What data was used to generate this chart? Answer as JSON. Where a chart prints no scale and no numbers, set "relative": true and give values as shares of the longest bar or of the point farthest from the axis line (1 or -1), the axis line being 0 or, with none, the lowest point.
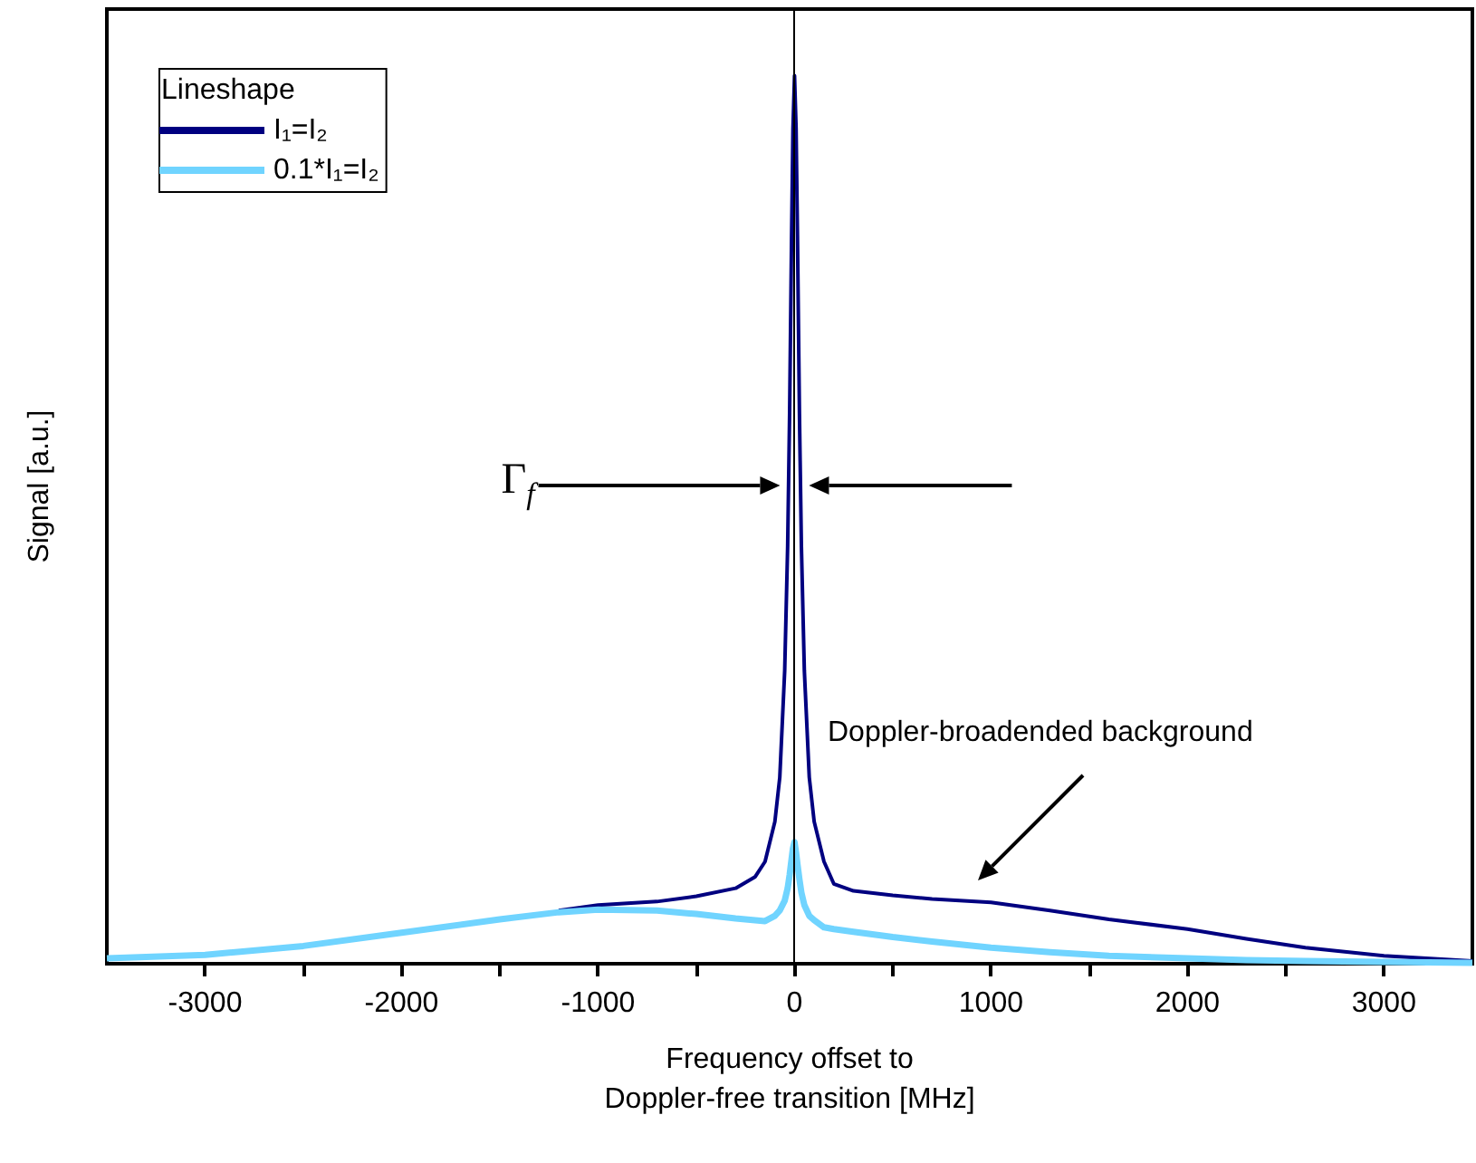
{
  "chart_data": {
    "type": "line",
    "relative": true,
    "xlabel": "Frequency offset to\nDoppler-free transition [MHz]",
    "ylabel": "Signal [a.u.]",
    "legend_title": "Lineshape",
    "legend": "top left",
    "grid": false,
    "marker": "none",
    "line_style": "solid",
    "x": [
      -3500,
      -3000,
      -2500,
      -2000,
      -1500,
      -1200,
      -1000,
      -700,
      -500,
      -300,
      -200,
      -150,
      -100,
      -75,
      -50,
      -35,
      -25,
      -15,
      -8,
      0,
      8,
      15,
      25,
      35,
      50,
      75,
      100,
      150,
      200,
      300,
      500,
      700,
      1000,
      1300,
      1600,
      2000,
      2300,
      2600,
      3000,
      3450
    ],
    "xlim": [
      -3500,
      3450
    ],
    "xticks": [
      -3000,
      {
        "value": -2500,
        "label": null
      },
      -2000,
      {
        "value": -1500,
        "label": null
      },
      -1000,
      {
        "value": -500,
        "label": null
      },
      0,
      {
        "value": 500,
        "label": null
      },
      1000,
      {
        "value": 1500,
        "label": null
      },
      2000,
      {
        "value": 2500,
        "label": null
      },
      3000
    ],
    "series": [
      {
        "name": "I₁=I₂",
        "color": "#000080",
        "values": [
          null,
          null,
          null,
          null,
          null,
          0.06,
          0.066,
          0.07,
          0.076,
          0.085,
          0.098,
          0.115,
          0.16,
          0.21,
          0.33,
          0.47,
          0.62,
          0.82,
          0.94,
          1,
          0.94,
          0.82,
          0.62,
          0.47,
          0.33,
          0.21,
          0.16,
          0.115,
          0.09,
          0.082,
          0.077,
          0.073,
          0.069,
          0.06,
          0.05,
          0.039,
          0.028,
          0.018,
          0.009,
          0.003
        ]
      },
      {
        "name": "0.1*I₁=I₂",
        "color": "#70d4ff",
        "values": [
          0.006,
          0.01,
          0.02,
          0.035,
          0.05,
          0.058,
          0.061,
          0.06,
          0.056,
          0.051,
          0.049,
          0.048,
          0.054,
          0.06,
          0.071,
          0.085,
          0.1,
          0.118,
          0.13,
          0.137,
          0.125,
          0.112,
          0.095,
          0.08,
          0.066,
          0.054,
          0.049,
          0.041,
          0.039,
          0.036,
          0.03,
          0.025,
          0.018,
          0.013,
          0.009,
          0.006,
          0.004,
          0.003,
          0.002,
          0.001
        ]
      }
    ],
    "ref_lines": [
      {
        "axis": "x",
        "value": 0,
        "color": "#000000"
      }
    ],
    "annotations": [
      "Γ$_{f}$",
      "Doppler-broadended background"
    ]
  }
}
